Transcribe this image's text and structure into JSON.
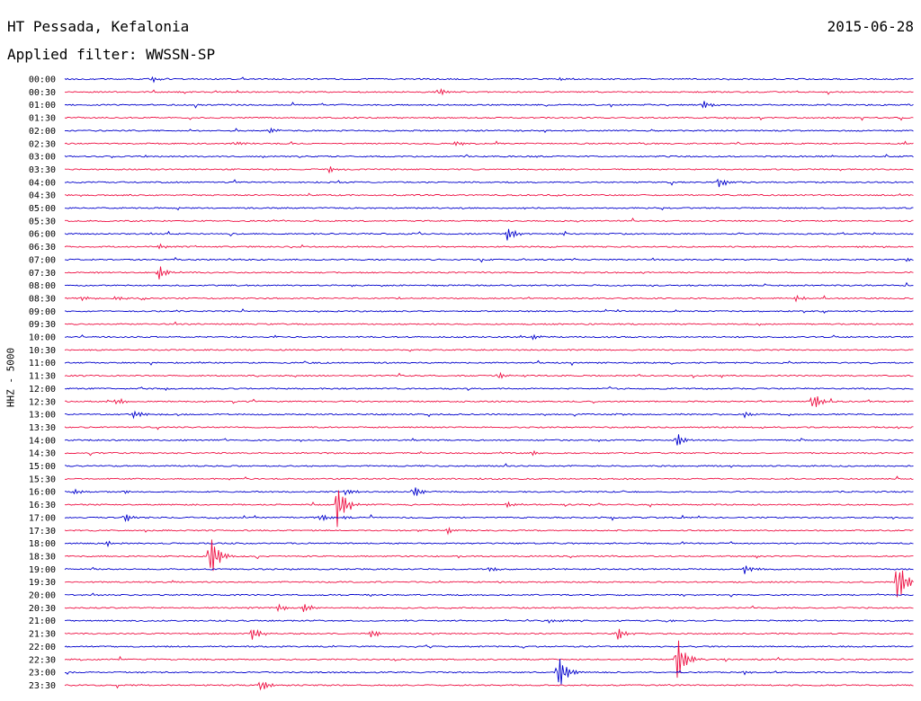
{
  "header": {
    "station": "HT Pessada, Kefalonia",
    "date": "2015-06-28",
    "filter": "Applied filter: WWSSN-SP"
  },
  "chart_data": {
    "type": "line",
    "title": "HT Pessada, Kefalonia",
    "ylabel": "HHZ - 5000",
    "trace_colors": [
      "#0000cc",
      "#ee1144"
    ],
    "rows": [
      {
        "label": "00:00",
        "events": [
          [
            0.1,
            0.3
          ],
          [
            0.58,
            0.2
          ]
        ]
      },
      {
        "label": "00:30",
        "events": [
          [
            0.44,
            0.3
          ]
        ]
      },
      {
        "label": "01:00",
        "events": [
          [
            0.75,
            0.4
          ]
        ]
      },
      {
        "label": "01:30",
        "events": []
      },
      {
        "label": "02:00",
        "events": [
          [
            0.24,
            0.2
          ]
        ]
      },
      {
        "label": "02:30",
        "events": [
          [
            0.2,
            0.15
          ],
          [
            0.46,
            0.2
          ]
        ]
      },
      {
        "label": "03:00",
        "events": []
      },
      {
        "label": "03:30",
        "events": [
          [
            0.31,
            0.3
          ]
        ]
      },
      {
        "label": "04:00",
        "events": [
          [
            0.77,
            0.4
          ]
        ]
      },
      {
        "label": "04:30",
        "events": []
      },
      {
        "label": "05:00",
        "events": []
      },
      {
        "label": "05:30",
        "events": []
      },
      {
        "label": "06:00",
        "events": [
          [
            0.52,
            0.55
          ]
        ]
      },
      {
        "label": "06:30",
        "events": [
          [
            0.11,
            0.2
          ]
        ]
      },
      {
        "label": "07:00",
        "events": [
          [
            0.99,
            0.2
          ]
        ]
      },
      {
        "label": "07:30",
        "events": [
          [
            0.11,
            0.6
          ]
        ]
      },
      {
        "label": "08:00",
        "events": []
      },
      {
        "label": "08:30",
        "events": [
          [
            0.02,
            0.2
          ],
          [
            0.06,
            0.2
          ],
          [
            0.86,
            0.25
          ]
        ]
      },
      {
        "label": "09:00",
        "events": []
      },
      {
        "label": "09:30",
        "events": []
      },
      {
        "label": "10:00",
        "events": [
          [
            0.55,
            0.2
          ]
        ]
      },
      {
        "label": "10:30",
        "events": []
      },
      {
        "label": "11:00",
        "events": []
      },
      {
        "label": "11:30",
        "events": [
          [
            0.51,
            0.3
          ]
        ]
      },
      {
        "label": "12:00",
        "events": []
      },
      {
        "label": "12:30",
        "events": [
          [
            0.06,
            0.3
          ],
          [
            0.88,
            0.8
          ]
        ]
      },
      {
        "label": "13:00",
        "events": [
          [
            0.08,
            0.3
          ],
          [
            0.8,
            0.2
          ]
        ]
      },
      {
        "label": "13:30",
        "events": []
      },
      {
        "label": "14:00",
        "events": [
          [
            0.72,
            0.6
          ]
        ]
      },
      {
        "label": "14:30",
        "events": [
          [
            0.55,
            0.2
          ]
        ]
      },
      {
        "label": "15:00",
        "events": []
      },
      {
        "label": "15:30",
        "events": []
      },
      {
        "label": "16:00",
        "events": [
          [
            0.01,
            0.2
          ],
          [
            0.07,
            0.15
          ],
          [
            0.33,
            0.3
          ],
          [
            0.41,
            0.45
          ]
        ]
      },
      {
        "label": "16:30",
        "events": [
          [
            0.32,
            1.8
          ],
          [
            0.52,
            0.2
          ]
        ]
      },
      {
        "label": "17:00",
        "events": [
          [
            0.07,
            0.4
          ],
          [
            0.3,
            0.3
          ],
          [
            0.33,
            0.2
          ]
        ]
      },
      {
        "label": "17:30",
        "events": [
          [
            0.45,
            0.3
          ]
        ]
      },
      {
        "label": "18:00",
        "events": [
          [
            0.05,
            0.2
          ]
        ]
      },
      {
        "label": "18:30",
        "events": [
          [
            0.17,
            2.0
          ]
        ]
      },
      {
        "label": "19:00",
        "events": [
          [
            0.5,
            0.2
          ],
          [
            0.8,
            0.4
          ]
        ]
      },
      {
        "label": "19:30",
        "events": [
          [
            0.98,
            2.0
          ]
        ]
      },
      {
        "label": "20:00",
        "events": []
      },
      {
        "label": "20:30",
        "events": [
          [
            0.25,
            0.3
          ],
          [
            0.28,
            0.4
          ]
        ]
      },
      {
        "label": "21:00",
        "events": [
          [
            0.57,
            0.2
          ],
          [
            0.71,
            0.2
          ]
        ]
      },
      {
        "label": "21:30",
        "events": [
          [
            0.22,
            0.55
          ],
          [
            0.36,
            0.35
          ],
          [
            0.65,
            0.55
          ]
        ]
      },
      {
        "label": "22:00",
        "events": []
      },
      {
        "label": "22:30",
        "events": [
          [
            0.72,
            2.0
          ]
        ]
      },
      {
        "label": "23:00",
        "events": [
          [
            0.58,
            1.6
          ],
          [
            0.8,
            0.2
          ]
        ]
      },
      {
        "label": "23:30",
        "events": [
          [
            0.23,
            0.5
          ]
        ]
      }
    ]
  }
}
